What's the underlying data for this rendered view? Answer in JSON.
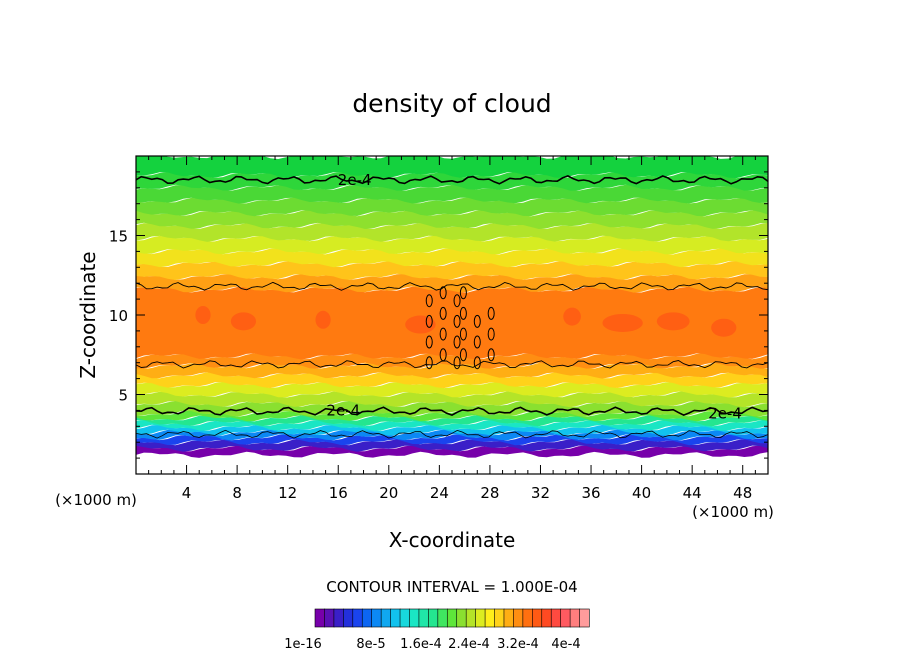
{
  "chart_data": {
    "type": "heatmap",
    "title": "density of cloud",
    "xlabel": "X-coordinate",
    "ylabel": "Z-coordinate",
    "x_unit_left": "(×1000 m)",
    "x_unit_right": "(×1000 m)",
    "xlim": [
      0,
      50
    ],
    "ylim": [
      0,
      20
    ],
    "x_ticks": [
      4,
      8,
      12,
      16,
      20,
      24,
      28,
      32,
      36,
      40,
      44,
      48
    ],
    "y_ticks": [
      5,
      10,
      15
    ],
    "contour_interval_text": "CONTOUR INTERVAL = 1.000E-04",
    "contour_labels": [
      {
        "text": "2e-4",
        "x": 17.3,
        "z": 18.5
      },
      {
        "text": "2e-4",
        "x": 16.4,
        "z": 4.0
      },
      {
        "text": "2e-4",
        "x": 46.6,
        "z": 3.8
      }
    ],
    "bands": [
      {
        "z0": 1.2,
        "z1": 1.6,
        "color": "#7700aa"
      },
      {
        "z0": 1.6,
        "z1": 2.0,
        "color": "#3a1fc8"
      },
      {
        "z0": 2.0,
        "z1": 2.3,
        "color": "#1a44ee"
      },
      {
        "z0": 2.3,
        "z1": 2.6,
        "color": "#0c88f4"
      },
      {
        "z0": 2.6,
        "z1": 2.9,
        "color": "#12c2ee"
      },
      {
        "z0": 2.9,
        "z1": 3.2,
        "color": "#1ae6c4"
      },
      {
        "z0": 3.2,
        "z1": 3.5,
        "color": "#24e690"
      },
      {
        "z0": 3.5,
        "z1": 3.8,
        "color": "#5ee63a"
      },
      {
        "z0": 3.8,
        "z1": 4.4,
        "color": "#8ae030"
      },
      {
        "z0": 4.4,
        "z1": 5.0,
        "color": "#b4e428"
      },
      {
        "z0": 5.0,
        "z1": 5.6,
        "color": "#dcec20"
      },
      {
        "z0": 5.6,
        "z1": 6.2,
        "color": "#ffd21a"
      },
      {
        "z0": 6.2,
        "z1": 6.8,
        "color": "#ffae14"
      },
      {
        "z0": 6.8,
        "z1": 7.4,
        "color": "#ff8e12"
      },
      {
        "z0": 7.4,
        "z1": 11.6,
        "color": "#ff7a10"
      },
      {
        "z0": 11.6,
        "z1": 12.4,
        "color": "#ffa014"
      },
      {
        "z0": 12.4,
        "z1": 13.2,
        "color": "#ffc41a"
      },
      {
        "z0": 13.2,
        "z1": 14.0,
        "color": "#f2e21c"
      },
      {
        "z0": 14.0,
        "z1": 14.8,
        "color": "#d6ec22"
      },
      {
        "z0": 14.8,
        "z1": 15.6,
        "color": "#b2e42a"
      },
      {
        "z0": 15.6,
        "z1": 16.4,
        "color": "#8ee02e"
      },
      {
        "z0": 16.4,
        "z1": 17.2,
        "color": "#6cdc32"
      },
      {
        "z0": 17.2,
        "z1": 18.0,
        "color": "#4ad836"
      },
      {
        "z0": 18.0,
        "z1": 18.8,
        "color": "#2ed63a"
      },
      {
        "z0": 18.8,
        "z1": 20.0,
        "color": "#14d23e"
      }
    ],
    "contour_lines": [
      {
        "z": 18.5,
        "width": 1.6
      },
      {
        "z": 11.8,
        "width": 0.9
      },
      {
        "z": 6.9,
        "width": 0.9
      },
      {
        "z": 3.95,
        "width": 1.6
      },
      {
        "z": 2.5,
        "width": 0.8
      }
    ],
    "colorbar": {
      "colors": [
        "#7700aa",
        "#5a10b4",
        "#3a1fc8",
        "#2330dc",
        "#1a44ee",
        "#0c66f2",
        "#0c88f4",
        "#10a8f0",
        "#12c2ee",
        "#18d8dc",
        "#1ae6c4",
        "#20e6a8",
        "#24e690",
        "#40e660",
        "#5ee63a",
        "#8ae030",
        "#b4e428",
        "#dcec20",
        "#ffee1a",
        "#ffd21a",
        "#ffae14",
        "#ff8e12",
        "#ff7010",
        "#ff5a14",
        "#ff4a22",
        "#ff4a40",
        "#ff5a60",
        "#ff7e7e",
        "#ff9c9c"
      ],
      "tick_labels": [
        "1e-16",
        "8e-5",
        "1.6e-4",
        "2.4e-4",
        "3.2e-4",
        "4e-4"
      ]
    }
  }
}
